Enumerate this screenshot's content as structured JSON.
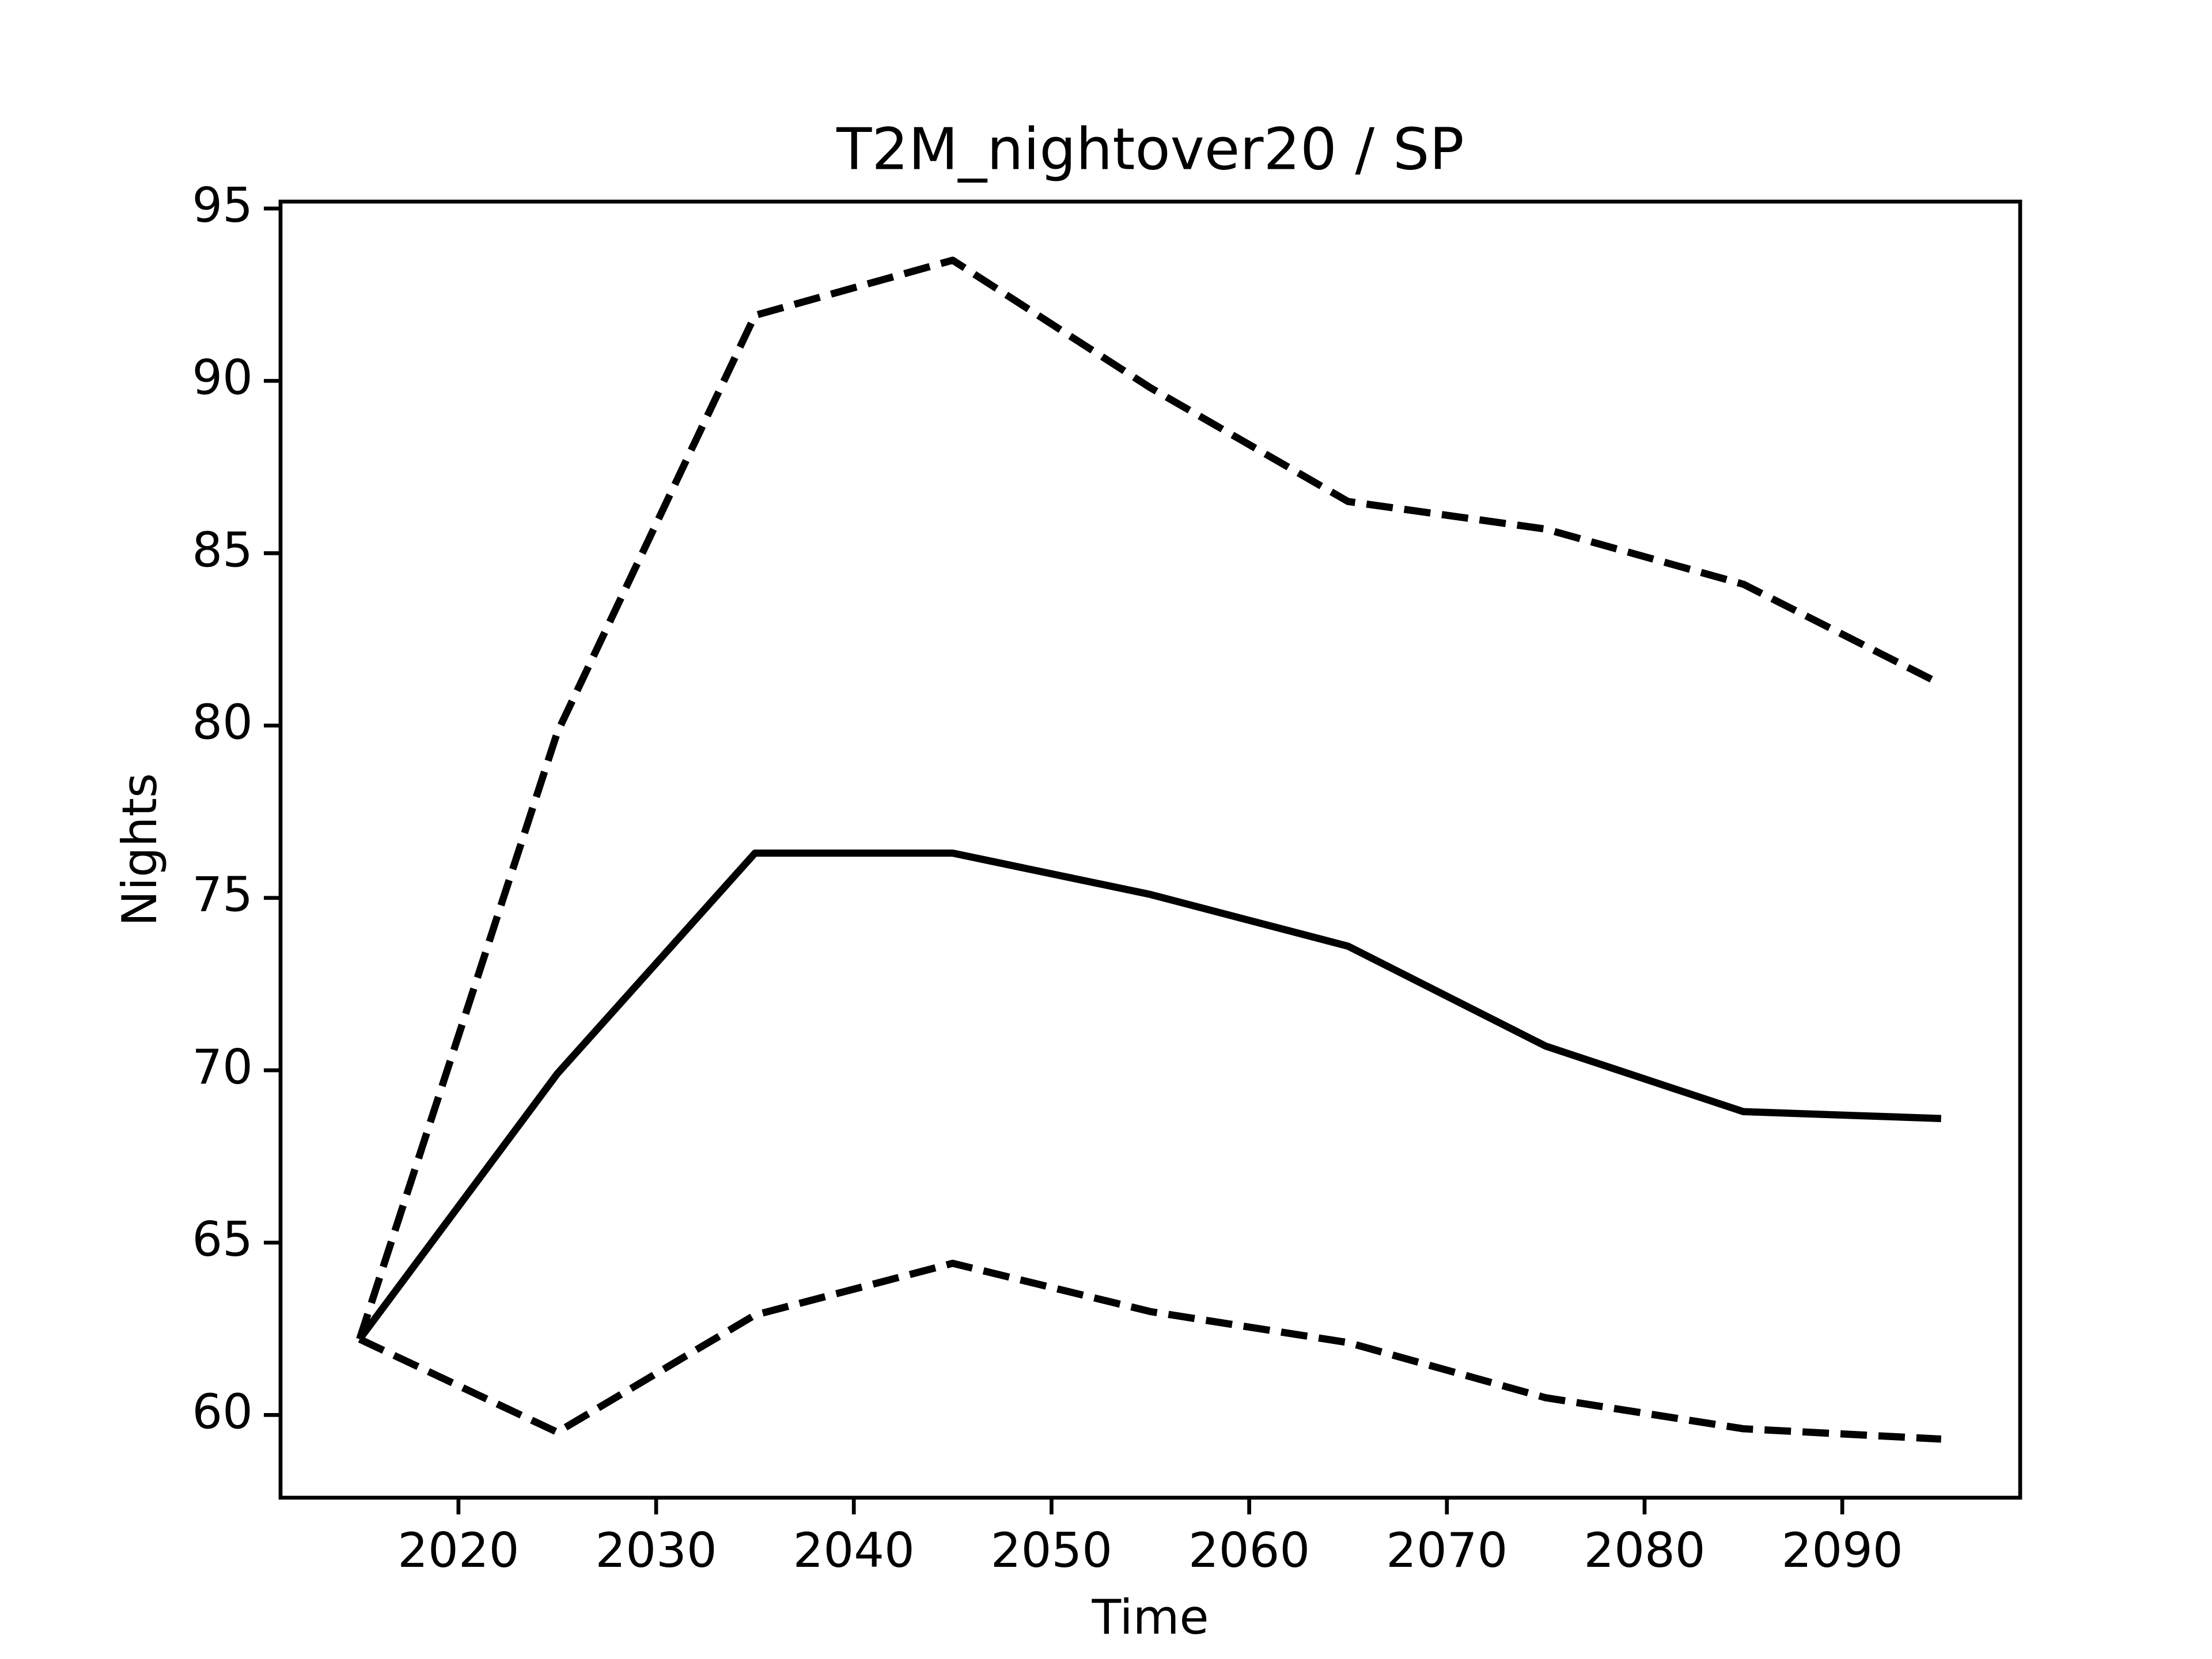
{
  "chart_data": {
    "type": "line",
    "title": "T2M_nightover20 / SP",
    "xlabel": "Time",
    "ylabel": "Nights",
    "x": [
      2015,
      2025,
      2035,
      2045,
      2055,
      2065,
      2075,
      2085,
      2095
    ],
    "series": [
      {
        "color": "#000000",
        "linestyle": "solid",
        "values": [
          62.2,
          69.9,
          76.3,
          76.3,
          75.1,
          73.6,
          70.7,
          68.8,
          68.6
        ]
      },
      {
        "color": "#000000",
        "linestyle": "dashed",
        "values": [
          62.2,
          79.8,
          91.9,
          93.5,
          89.8,
          86.5,
          85.7,
          84.1,
          81.2
        ]
      },
      {
        "color": "#000000",
        "linestyle": "dashed",
        "values": [
          62.2,
          59.5,
          62.9,
          64.4,
          63.0,
          62.1,
          60.5,
          59.6,
          59.3
        ]
      }
    ],
    "xlim": [
      2011,
      2099
    ],
    "xticks": [
      2020,
      2030,
      2040,
      2050,
      2060,
      2070,
      2080,
      2090
    ],
    "ylim": [
      57.6,
      95.2
    ],
    "yticks": [
      60,
      65,
      70,
      75,
      80,
      85,
      90,
      95
    ],
    "grid": false
  }
}
